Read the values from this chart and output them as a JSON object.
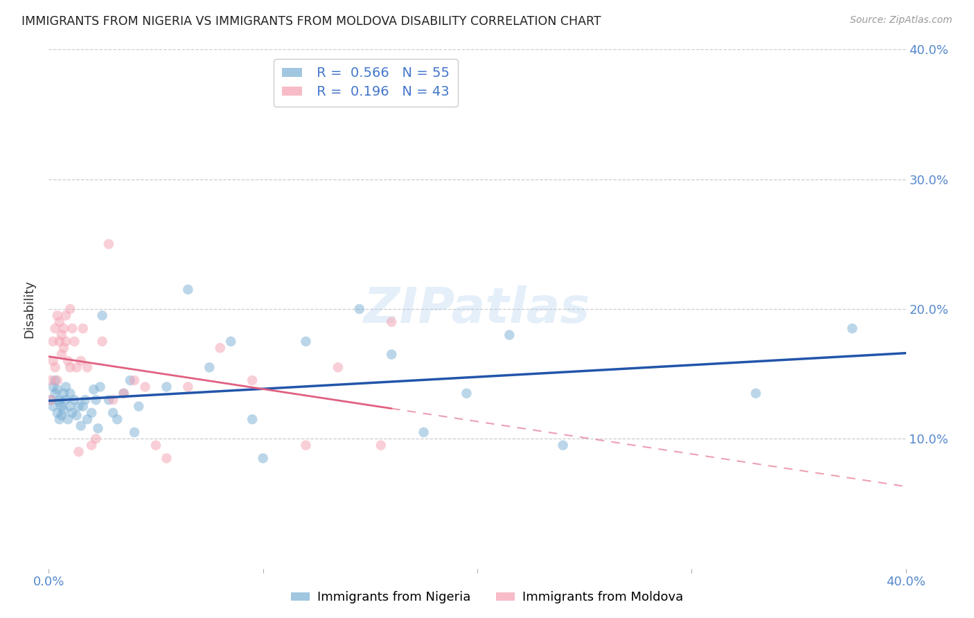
{
  "title": "IMMIGRANTS FROM NIGERIA VS IMMIGRANTS FROM MOLDOVA DISABILITY CORRELATION CHART",
  "source": "Source: ZipAtlas.com",
  "ylabel": "Disability",
  "xlim": [
    0.0,
    0.4
  ],
  "ylim": [
    0.0,
    0.4
  ],
  "x_ticks": [
    0.0,
    0.1,
    0.2,
    0.3,
    0.4
  ],
  "y_ticks": [
    0.1,
    0.2,
    0.3,
    0.4
  ],
  "x_tick_labels_ends": [
    "0.0%",
    "40.0%"
  ],
  "y_tick_labels": [
    "10.0%",
    "20.0%",
    "30.0%",
    "40.0%"
  ],
  "nigeria_R": 0.566,
  "nigeria_N": 55,
  "moldova_R": 0.196,
  "moldova_N": 43,
  "nigeria_color": "#7AAFD4",
  "moldova_color": "#F4A0B0",
  "nigeria_line_color": "#2255AA",
  "moldova_line_color": "#E06080",
  "watermark": "ZIPatlas",
  "nigeria_x": [
    0.001,
    0.002,
    0.002,
    0.003,
    0.003,
    0.004,
    0.004,
    0.005,
    0.005,
    0.005,
    0.006,
    0.006,
    0.007,
    0.007,
    0.008,
    0.008,
    0.009,
    0.01,
    0.01,
    0.011,
    0.012,
    0.013,
    0.014,
    0.015,
    0.016,
    0.017,
    0.018,
    0.02,
    0.021,
    0.022,
    0.023,
    0.024,
    0.025,
    0.028,
    0.03,
    0.032,
    0.035,
    0.038,
    0.04,
    0.042,
    0.055,
    0.065,
    0.075,
    0.085,
    0.095,
    0.1,
    0.12,
    0.145,
    0.16,
    0.175,
    0.195,
    0.215,
    0.24,
    0.33,
    0.375
  ],
  "nigeria_y": [
    0.13,
    0.125,
    0.14,
    0.135,
    0.145,
    0.12,
    0.138,
    0.13,
    0.115,
    0.128,
    0.125,
    0.118,
    0.135,
    0.122,
    0.13,
    0.14,
    0.115,
    0.125,
    0.135,
    0.12,
    0.13,
    0.118,
    0.125,
    0.11,
    0.125,
    0.13,
    0.115,
    0.12,
    0.138,
    0.13,
    0.108,
    0.14,
    0.195,
    0.13,
    0.12,
    0.115,
    0.135,
    0.145,
    0.105,
    0.125,
    0.14,
    0.215,
    0.155,
    0.175,
    0.115,
    0.085,
    0.175,
    0.2,
    0.165,
    0.105,
    0.135,
    0.18,
    0.095,
    0.135,
    0.185
  ],
  "moldova_x": [
    0.001,
    0.001,
    0.002,
    0.002,
    0.003,
    0.003,
    0.004,
    0.004,
    0.005,
    0.005,
    0.006,
    0.006,
    0.007,
    0.007,
    0.008,
    0.008,
    0.009,
    0.01,
    0.01,
    0.011,
    0.012,
    0.013,
    0.014,
    0.015,
    0.016,
    0.018,
    0.02,
    0.022,
    0.025,
    0.028,
    0.03,
    0.035,
    0.04,
    0.045,
    0.05,
    0.055,
    0.065,
    0.08,
    0.095,
    0.12,
    0.135,
    0.155,
    0.16
  ],
  "moldova_y": [
    0.13,
    0.145,
    0.175,
    0.16,
    0.155,
    0.185,
    0.145,
    0.195,
    0.175,
    0.19,
    0.18,
    0.165,
    0.17,
    0.185,
    0.175,
    0.195,
    0.16,
    0.2,
    0.155,
    0.185,
    0.175,
    0.155,
    0.09,
    0.16,
    0.185,
    0.155,
    0.095,
    0.1,
    0.175,
    0.25,
    0.13,
    0.135,
    0.145,
    0.14,
    0.095,
    0.085,
    0.14,
    0.17,
    0.145,
    0.095,
    0.155,
    0.095,
    0.19
  ]
}
